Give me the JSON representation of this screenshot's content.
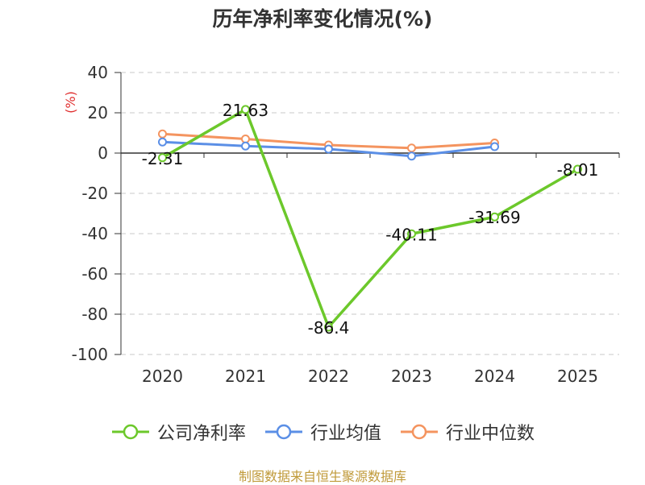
{
  "chart_data": {
    "type": "line",
    "title": "历年净利率变化情况(%)",
    "unit_label": "(%)",
    "categories": [
      "2020",
      "2021",
      "2022",
      "2023",
      "2024",
      "2025"
    ],
    "ylim": [
      -100,
      40
    ],
    "yticks": [
      40,
      20,
      0,
      -20,
      -40,
      -60,
      -80,
      -100
    ],
    "ytick_labels": [
      "40",
      "20",
      "0",
      "-20",
      "-40",
      "-60",
      "-80",
      "-100"
    ],
    "grid": true,
    "legend_position": "bottom",
    "series": [
      {
        "name": "公司净利率",
        "color": "#6cc82b",
        "values": [
          -2.31,
          21.63,
          -86.4,
          -40.11,
          -31.69,
          -8.01
        ],
        "labels": [
          "-2.31",
          "21.63",
          "-86.4",
          "-40.11",
          "-31.69",
          "-8.01"
        ]
      },
      {
        "name": "行业均值",
        "color": "#5b8fe6",
        "values": [
          5.5,
          3.5,
          2.0,
          -1.5,
          3.2,
          null
        ]
      },
      {
        "name": "行业中位数",
        "color": "#f4945f",
        "values": [
          9.5,
          7.0,
          4.0,
          2.5,
          5.0,
          null
        ]
      }
    ]
  },
  "source": "制图数据来自恒生聚源数据库"
}
